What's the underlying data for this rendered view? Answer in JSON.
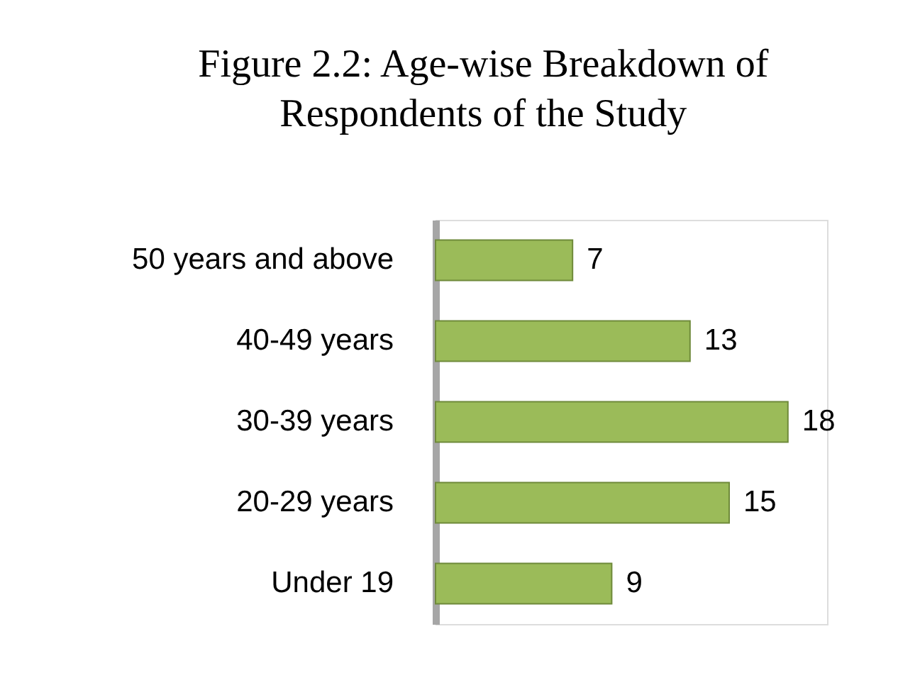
{
  "chart_data": {
    "type": "bar",
    "orientation": "horizontal",
    "title": "Figure 2.2: Age-wise Breakdown of\nRespondents of the Study",
    "categories": [
      "50 years and above",
      "40-49 years",
      "30-39 years",
      "20-29 years",
      "Under 19"
    ],
    "values": [
      7,
      13,
      18,
      15,
      9
    ],
    "color": "#9bbb59",
    "xlim": [
      0,
      20
    ],
    "tick_labels": "y",
    "data_labels": true
  }
}
